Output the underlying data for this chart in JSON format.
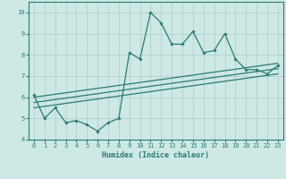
{
  "x": [
    0,
    1,
    2,
    3,
    4,
    5,
    6,
    7,
    8,
    9,
    10,
    11,
    12,
    13,
    14,
    15,
    16,
    17,
    18,
    19,
    20,
    21,
    22,
    23
  ],
  "y_main": [
    6.1,
    5.0,
    5.5,
    4.8,
    4.9,
    4.7,
    4.4,
    4.8,
    5.0,
    8.1,
    7.8,
    10.0,
    9.5,
    8.5,
    8.5,
    9.1,
    8.1,
    8.2,
    9.0,
    7.8,
    7.3,
    7.3,
    7.1,
    7.5
  ],
  "trend1_x": [
    0,
    23
  ],
  "trend1_y": [
    6.0,
    7.6
  ],
  "trend2_x": [
    0,
    23
  ],
  "trend2_y": [
    5.75,
    7.35
  ],
  "trend3_x": [
    0,
    23
  ],
  "trend3_y": [
    5.5,
    7.1
  ],
  "xlabel": "Humidex (Indice chaleur)",
  "xticks": [
    0,
    1,
    2,
    3,
    4,
    5,
    6,
    7,
    8,
    9,
    10,
    11,
    12,
    13,
    14,
    15,
    16,
    17,
    18,
    19,
    20,
    21,
    22,
    23
  ],
  "yticks": [
    4,
    5,
    6,
    7,
    8,
    9,
    10
  ],
  "ylim": [
    4.0,
    10.5
  ],
  "xlim": [
    -0.5,
    23.5
  ],
  "line_color": "#2a7d6e",
  "bg_color": "#cde8e5",
  "grid_color": "#aeccca"
}
